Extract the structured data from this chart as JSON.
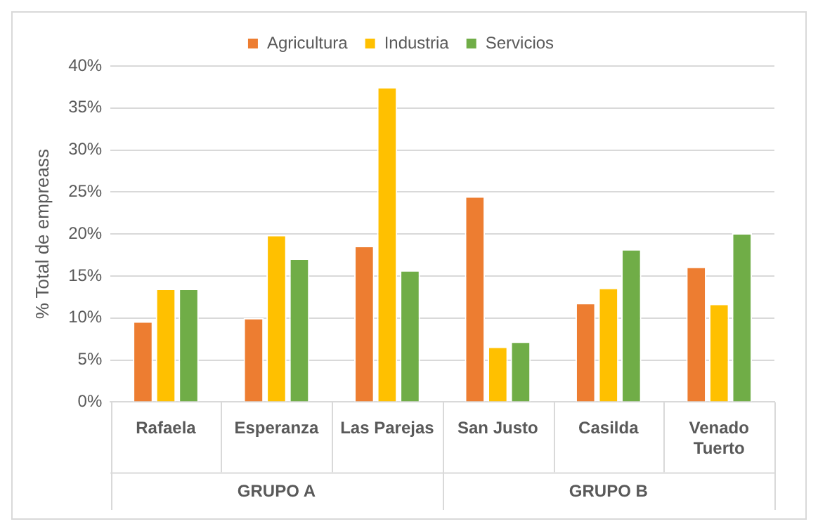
{
  "chart_data": {
    "type": "bar",
    "ylabel": "% Total de empreass",
    "categories": [
      "Rafaela",
      "Esperanza",
      "Las Parejas",
      "San Justo",
      "Casilda",
      "Venado Tuerto"
    ],
    "series": [
      {
        "name": "Agricultura",
        "color": "#ed7d31",
        "values": [
          9.6,
          10.0,
          18.6,
          24.5,
          11.8,
          16.1
        ]
      },
      {
        "name": "Industria",
        "color": "#ffc000",
        "values": [
          13.5,
          19.9,
          37.5,
          6.6,
          13.6,
          11.7
        ]
      },
      {
        "name": "Servicios",
        "color": "#70ad47",
        "values": [
          13.5,
          17.1,
          15.7,
          7.2,
          18.2,
          20.1
        ]
      }
    ],
    "ylim": [
      0,
      40
    ],
    "yticks": [
      {
        "value": 0,
        "label": "0%"
      },
      {
        "value": 5,
        "label": "5%"
      },
      {
        "value": 10,
        "label": "10%"
      },
      {
        "value": 15,
        "label": "15%"
      },
      {
        "value": 20,
        "label": "20%"
      },
      {
        "value": 25,
        "label": "25%"
      },
      {
        "value": 30,
        "label": "30%"
      },
      {
        "value": 35,
        "label": "35%"
      },
      {
        "value": 40,
        "label": "40%"
      }
    ],
    "grid": "y",
    "legend": "top",
    "annotations": [
      "GRUPO A",
      "GRUPO B"
    ]
  }
}
